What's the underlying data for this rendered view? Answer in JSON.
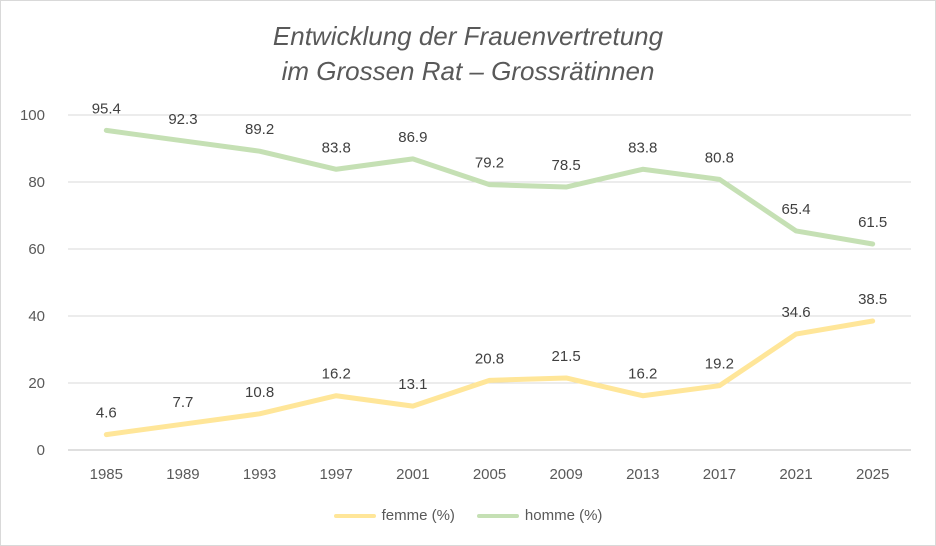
{
  "chart_data": {
    "type": "line",
    "title_line1": "Entwicklung der Frauenvertretung",
    "title_line2": "im Grossen Rat – Grossrätinnen",
    "xlabel": "",
    "ylabel": "",
    "ylim": [
      0,
      100
    ],
    "yticks": [
      0,
      20,
      40,
      60,
      80,
      100
    ],
    "grid": true,
    "legend_position": "bottom",
    "categories": [
      "1985",
      "1989",
      "1993",
      "1997",
      "2001",
      "2005",
      "2009",
      "2013",
      "2017",
      "2021",
      "2025"
    ],
    "series": [
      {
        "name": "femme (%)",
        "color": "#ffe699",
        "values": [
          4.6,
          7.7,
          10.8,
          16.2,
          13.1,
          20.8,
          21.5,
          16.2,
          19.2,
          34.6,
          38.5
        ],
        "labels": [
          "4.6",
          "7.7",
          "10.8",
          "16.2",
          "13.1",
          "20.8",
          "21.5",
          "16.2",
          "19.2",
          "34.6",
          "38.5"
        ]
      },
      {
        "name": "homme (%)",
        "color": "#c5e0b4",
        "values": [
          95.4,
          92.3,
          89.2,
          83.8,
          86.9,
          79.2,
          78.5,
          83.8,
          80.8,
          65.4,
          61.5
        ],
        "labels": [
          "95.4",
          "92.3",
          "89.2",
          "83.8",
          "86.9",
          "79.2",
          "78.5",
          "83.8",
          "80.8",
          "65.4",
          "61.5"
        ]
      }
    ]
  }
}
